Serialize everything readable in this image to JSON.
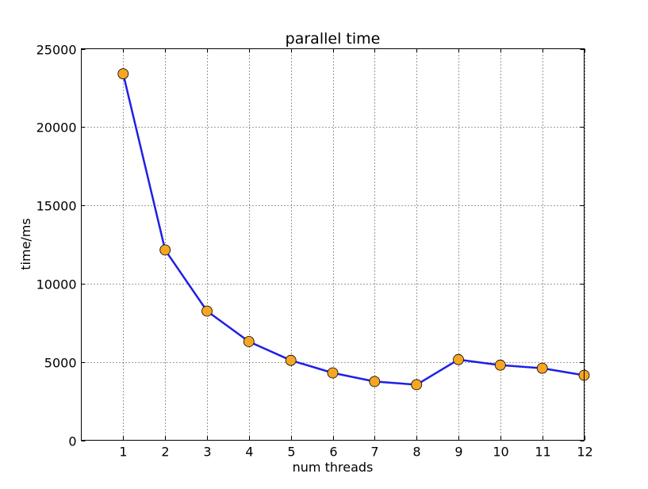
{
  "chart_data": {
    "type": "line",
    "title": "parallel time",
    "xlabel": "num threads",
    "ylabel": "time/ms",
    "x": [
      1,
      2,
      3,
      4,
      5,
      6,
      7,
      8,
      9,
      10,
      11,
      12
    ],
    "xticks": [
      "1",
      "2",
      "3",
      "4",
      "5",
      "6",
      "7",
      "8",
      "9",
      "10",
      "11",
      "12"
    ],
    "xlim": [
      0,
      12
    ],
    "yticks": [
      "0",
      "5000",
      "10000",
      "15000",
      "20000",
      "25000"
    ],
    "ylim": [
      0,
      25000
    ],
    "grid": true,
    "series": [
      {
        "values": [
          23400,
          12150,
          8250,
          6300,
          5100,
          4300,
          3750,
          3550,
          5150,
          4800,
          4600,
          4150
        ],
        "line_color": "#1f1fe6",
        "marker_color": "#f5a623"
      }
    ]
  }
}
